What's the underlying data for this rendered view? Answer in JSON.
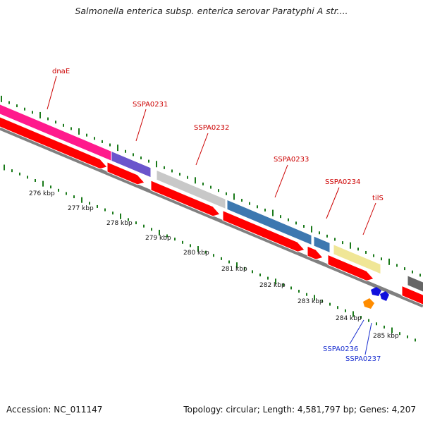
{
  "title": "Salmonella enterica subsp. enterica serovar Paratyphi A str....",
  "footer": {
    "accession": "Accession: NC_011147",
    "topology": "Topology: circular; Length: 4,581,797 bp; Genes: 4,207"
  },
  "ticks": [
    {
      "label": "276 kbp"
    },
    {
      "label": "277 kbp"
    },
    {
      "label": "278 kbp"
    },
    {
      "label": "279 kbp"
    },
    {
      "label": "280 kbp"
    },
    {
      "label": "281 kbp"
    },
    {
      "label": "282 kbp"
    },
    {
      "label": "283 kbp"
    },
    {
      "label": "284 kbp"
    },
    {
      "label": "285 kbp"
    }
  ],
  "genes": [
    {
      "name": "dnaE",
      "color": "#cc0000"
    },
    {
      "name": "SSPA0231",
      "color": "#cc0000"
    },
    {
      "name": "SSPA0232",
      "color": "#cc0000"
    },
    {
      "name": "SSPA0233",
      "color": "#cc0000"
    },
    {
      "name": "SSPA0234",
      "color": "#cc0000"
    },
    {
      "name": "tilS",
      "color": "#cc0000"
    },
    {
      "name": "SSPA0236",
      "color": "#1a2fd0"
    },
    {
      "name": "SSPA0237",
      "color": "#1a2fd0"
    }
  ],
  "colors": {
    "cds": "#ff0000",
    "dnaE": "#ff1a8c",
    "SSPA0231": "#6a55cc",
    "SSPA0232": "#c8c8c8",
    "SSPA0233": "#3d78b0",
    "SSPA0234": "#3d78b0",
    "tilS": "#f0e696",
    "backbone": "#808080",
    "ticks": "#1a7a1a",
    "small_blue": "#1010dd",
    "small_orange": "#ff8c00"
  }
}
